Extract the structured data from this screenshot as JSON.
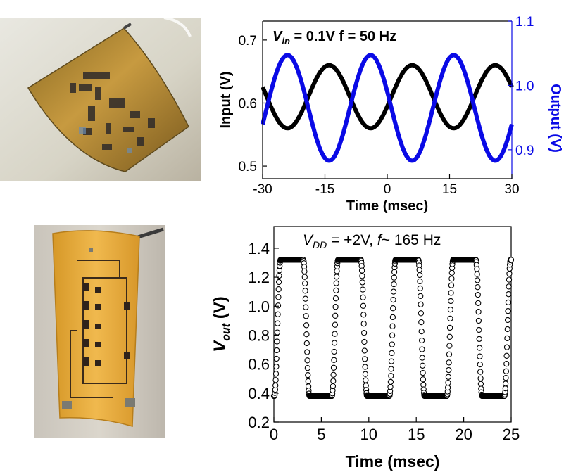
{
  "chart_data": [
    {
      "type": "line",
      "xlabel": "Time (msec)",
      "ylabel": "Input (V)",
      "ylabel_right": "Output (V)",
      "annotation": {
        "v": "V",
        "sub": "in",
        "rest": " = 0.1V  f = 50 Hz"
      },
      "xlim": [
        -30,
        30
      ],
      "ylim": [
        0.48,
        0.73
      ],
      "ylim_right": [
        0.855,
        1.1
      ],
      "x_ticks": [
        "-30",
        "-15",
        "0",
        "15",
        "30"
      ],
      "y_ticks": [
        "0.5",
        "0.6",
        "0.7"
      ],
      "y_ticks_right": [
        "0.9",
        "1.0",
        "1.1"
      ],
      "series": [
        {
          "axis": "left",
          "color": "#000000",
          "offset": 0.61,
          "amplitude": 0.05,
          "frequency_hz": 50,
          "peak_at_ms": -14
        },
        {
          "axis": "right",
          "color": "#0a0ae6",
          "offset": 0.965,
          "amplitude": 0.082,
          "frequency_hz": 50,
          "peak_at_ms": -24
        }
      ],
      "grid": false
    },
    {
      "type": "scatter",
      "xlabel": "Time (msec)",
      "ylabel": {
        "v": "V",
        "sub": "out",
        "rest": " (V)"
      },
      "annotation": {
        "v1": "V",
        "sub": "DD",
        "mid": " = +2V, ",
        "f": "f",
        "rest": "~ 165 Hz"
      },
      "xlim": [
        0,
        25
      ],
      "ylim": [
        0.2,
        1.55
      ],
      "x_ticks": [
        "0",
        "5",
        "10",
        "15",
        "20",
        "25"
      ],
      "y_ticks": [
        "0.2",
        "0.4",
        "0.6",
        "0.8",
        "1.0",
        "1.2",
        "1.4"
      ],
      "marker": "open-circle",
      "square_wave": {
        "low": 0.38,
        "high": 1.32,
        "period_ms": 6.06,
        "first_rise_ms": 0.05,
        "high_duration_ms": 2.4,
        "edge_ms": 0.65
      },
      "grid": false
    }
  ],
  "colors": {
    "input": "#000000",
    "output": "#0a0ae6",
    "axis": "#000000",
    "right_axis": "#0a0ae6"
  },
  "photos": [
    {
      "icon": "flexible-circuit-film-photo",
      "tint": "#b8923a"
    },
    {
      "icon": "bent-ring-oscillator-photo",
      "tint": "#e2a232"
    }
  ]
}
